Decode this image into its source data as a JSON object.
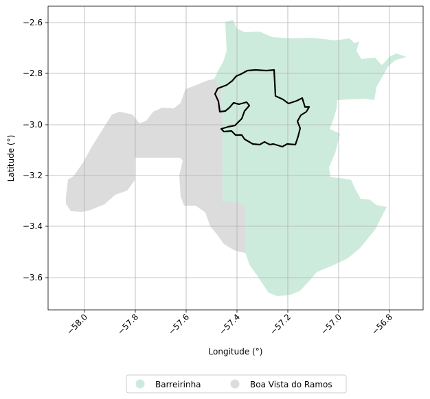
{
  "map": {
    "xlabel": "Longitude (°)",
    "ylabel": "Latitude (°)",
    "xticks": [
      "−58.0",
      "−57.8",
      "−57.6",
      "−57.4",
      "−57.2",
      "−57.0",
      "−56.8"
    ],
    "yticks": [
      "−2.6",
      "−2.8",
      "−3.0",
      "−3.2",
      "−3.4",
      "−3.6"
    ],
    "grid": true,
    "legend_position": "bottom-center",
    "regions": [
      {
        "name": "Barreirinha",
        "color": "#cdebdc"
      },
      {
        "name": "Boa Vista do Ramos",
        "color": "#dcdcdc"
      }
    ],
    "outline_color": "#000000"
  }
}
